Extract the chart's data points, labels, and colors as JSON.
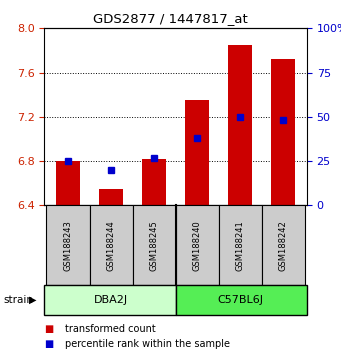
{
  "title": "GDS2877 / 1447817_at",
  "samples": [
    "GSM188243",
    "GSM188244",
    "GSM188245",
    "GSM188240",
    "GSM188241",
    "GSM188242"
  ],
  "transformed_counts": [
    6.8,
    6.55,
    6.82,
    7.35,
    7.85,
    7.72
  ],
  "percentile_ranks": [
    25,
    20,
    27,
    38,
    50,
    48
  ],
  "bar_bottom": 6.4,
  "ylim": [
    6.4,
    8.0
  ],
  "yticks": [
    6.4,
    6.8,
    7.2,
    7.6,
    8.0
  ],
  "right_yticks": [
    0,
    25,
    50,
    75,
    100
  ],
  "red_color": "#cc0000",
  "blue_color": "#0000cc",
  "legend_red": "transformed count",
  "legend_blue": "percentile rank within the sample",
  "bar_width": 0.55,
  "gray_bg": "#cccccc",
  "dba2j_color": "#ccffcc",
  "c57bl6j_color": "#55ee55",
  "group1_label": "DBA2J",
  "group2_label": "C57BL6J",
  "strain_label": "strain"
}
